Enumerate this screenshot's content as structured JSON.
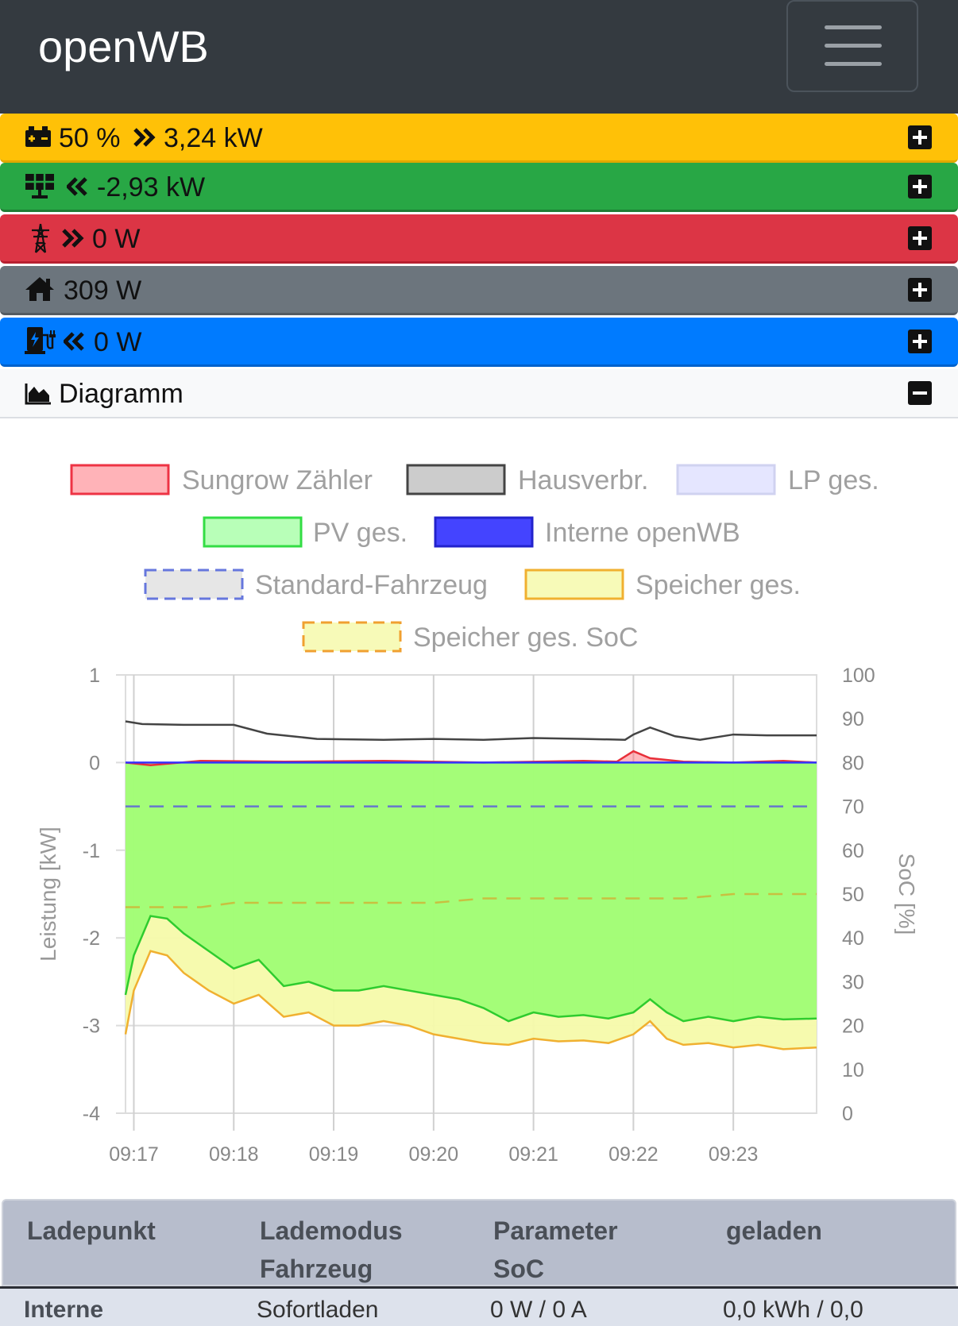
{
  "app": {
    "brand": "openWB"
  },
  "colors": {
    "battery": "#ffc107",
    "pv": "#28a745",
    "grid": "#dc3545",
    "house": "#6c757d",
    "chargepoint": "#007bff",
    "navbar": "#343a40"
  },
  "status_rows": [
    {
      "id": "battery",
      "icons": [
        "battery-icon",
        "double-chevron-right-icon"
      ],
      "soc": "50 %",
      "power": "3,24 kW"
    },
    {
      "id": "pv",
      "icons": [
        "solar-panel-icon",
        "double-chevron-left-icon"
      ],
      "power": "-2,93 kW"
    },
    {
      "id": "grid",
      "icons": [
        "power-tower-icon",
        "double-chevron-right-icon"
      ],
      "power": "0 W"
    },
    {
      "id": "house",
      "icons": [
        "home-icon"
      ],
      "power": "309 W"
    },
    {
      "id": "chargepoint",
      "icons": [
        "charging-station-icon",
        "double-chevron-left-icon"
      ],
      "power": "0 W"
    }
  ],
  "diagram": {
    "label": "Diagramm",
    "icons": [
      "area-chart-icon",
      "minus-square-icon"
    ]
  },
  "chart_data": {
    "type": "area",
    "legend": [
      "Sungrow Zähler",
      "Hausverbr.",
      "LP ges.",
      "PV ges.",
      "Interne openWB",
      "Standard-Fahrzeug",
      "Speicher ges.",
      "Speicher ges. SoC"
    ],
    "legend_placement": "top",
    "ylabel": "Leistung [kW]",
    "y2label": "SoC [%]",
    "ylim": [
      -4,
      1
    ],
    "y2lim": [
      0,
      100
    ],
    "yticks": [
      "1",
      "0",
      "-1",
      "-2",
      "-3",
      "-4"
    ],
    "y2ticks": [
      "100",
      "90",
      "80",
      "70",
      "60",
      "50",
      "40",
      "30",
      "20",
      "10",
      "0"
    ],
    "x_start_time": "09:16:55",
    "x_end_time": "09:23:50",
    "xticks": [
      {
        "time": "09:17",
        "label": "09:17"
      },
      {
        "time": "09:18",
        "label": "09:18"
      },
      {
        "time": "09:19",
        "label": "09:19"
      },
      {
        "time": "09:20",
        "label": "09:20"
      },
      {
        "time": "09:21",
        "label": "09:21"
      },
      {
        "time": "09:22",
        "label": "09:22"
      },
      {
        "time": "09:23",
        "label": "09:23"
      }
    ],
    "grid": true,
    "series": [
      {
        "name": "Hausverbr.",
        "color": "#444444",
        "fill": "none",
        "times": [
          "09:16:55",
          "09:17:05",
          "09:17:30",
          "09:18:00",
          "09:18:20",
          "09:18:50",
          "09:19:30",
          "09:20:00",
          "09:20:30",
          "09:21:00",
          "09:21:30",
          "09:21:55",
          "09:22:00",
          "09:22:10",
          "09:22:25",
          "09:22:40",
          "09:23:00",
          "09:23:20",
          "09:23:50"
        ],
        "values": [
          0.47,
          0.44,
          0.43,
          0.43,
          0.33,
          0.27,
          0.26,
          0.27,
          0.26,
          0.28,
          0.27,
          0.26,
          0.32,
          0.4,
          0.3,
          0.26,
          0.32,
          0.31,
          0.31
        ]
      },
      {
        "name": "Sungrow Zähler",
        "color": "#e8303a",
        "fill": "rgba(255,100,110,0.45)",
        "times": [
          "09:16:55",
          "09:17:10",
          "09:17:40",
          "09:18:30",
          "09:19:30",
          "09:20:30",
          "09:21:30",
          "09:21:50",
          "09:22:00",
          "09:22:10",
          "09:22:30",
          "09:23:00",
          "09:23:30",
          "09:23:50"
        ],
        "values": [
          0.0,
          -0.03,
          0.02,
          0.01,
          0.02,
          0.0,
          0.02,
          0.01,
          0.13,
          0.05,
          0.01,
          0.0,
          0.02,
          0.0
        ]
      },
      {
        "name": "Interne openWB",
        "color": "#3333ff",
        "fill": "none",
        "times": [
          "09:16:55",
          "09:23:50"
        ],
        "values": [
          0,
          0
        ]
      },
      {
        "name": "Standard-Fahrzeug",
        "color": "#6677cc",
        "fill": "none",
        "dashed": true,
        "axis": "right",
        "times": [
          "09:16:55",
          "09:23:50"
        ],
        "values": [
          70,
          70
        ]
      },
      {
        "name": "Speicher ges. SoC",
        "color": "#c8c040",
        "fill": "none",
        "dashed": true,
        "axis": "right",
        "times": [
          "09:16:55",
          "09:17:40",
          "09:18:00",
          "09:19:00",
          "09:20:00",
          "09:20:30",
          "09:21:30",
          "09:22:30",
          "09:23:00",
          "09:23:50"
        ],
        "values": [
          47,
          47,
          48,
          48,
          48,
          49,
          49,
          49,
          50,
          50
        ]
      },
      {
        "name": "PV ges.",
        "color": "#2ecc2e",
        "fill": "rgba(120,255,90,0.65)",
        "times": [
          "09:16:55",
          "09:17:00",
          "09:17:10",
          "09:17:20",
          "09:17:30",
          "09:17:45",
          "09:18:00",
          "09:18:15",
          "09:18:30",
          "09:18:45",
          "09:19:00",
          "09:19:15",
          "09:19:30",
          "09:19:45",
          "09:20:00",
          "09:20:15",
          "09:20:30",
          "09:20:45",
          "09:21:00",
          "09:21:15",
          "09:21:30",
          "09:21:45",
          "09:22:00",
          "09:22:10",
          "09:22:20",
          "09:22:30",
          "09:22:45",
          "09:23:00",
          "09:23:15",
          "09:23:30",
          "09:23:50"
        ],
        "values": [
          -2.65,
          -2.2,
          -1.75,
          -1.78,
          -1.95,
          -2.15,
          -2.35,
          -2.25,
          -2.55,
          -2.5,
          -2.6,
          -2.6,
          -2.55,
          -2.6,
          -2.65,
          -2.7,
          -2.8,
          -2.95,
          -2.85,
          -2.9,
          -2.88,
          -2.92,
          -2.85,
          -2.7,
          -2.85,
          -2.95,
          -2.9,
          -2.95,
          -2.9,
          -2.93,
          -2.92
        ]
      },
      {
        "name": "Speicher ges.",
        "color": "#f0b030",
        "fill": "rgba(245,250,170,0.95)",
        "times": [
          "09:16:55",
          "09:17:00",
          "09:17:10",
          "09:17:20",
          "09:17:30",
          "09:17:45",
          "09:18:00",
          "09:18:15",
          "09:18:30",
          "09:18:45",
          "09:19:00",
          "09:19:15",
          "09:19:30",
          "09:19:45",
          "09:20:00",
          "09:20:15",
          "09:20:30",
          "09:20:45",
          "09:21:00",
          "09:21:15",
          "09:21:30",
          "09:21:45",
          "09:22:00",
          "09:22:10",
          "09:22:20",
          "09:22:30",
          "09:22:45",
          "09:23:00",
          "09:23:15",
          "09:23:30",
          "09:23:50"
        ],
        "values": [
          -3.1,
          -2.6,
          -2.15,
          -2.2,
          -2.4,
          -2.6,
          -2.75,
          -2.65,
          -2.9,
          -2.85,
          -3.0,
          -3.0,
          -2.95,
          -3.0,
          -3.1,
          -3.15,
          -3.2,
          -3.22,
          -3.15,
          -3.18,
          -3.17,
          -3.2,
          -3.1,
          -2.95,
          -3.15,
          -3.22,
          -3.2,
          -3.25,
          -3.22,
          -3.27,
          -3.25
        ]
      }
    ]
  },
  "table": {
    "headers": [
      {
        "line1": "Ladepunkt",
        "line2": ""
      },
      {
        "line1": "Lademodus",
        "line2": "Fahrzeug"
      },
      {
        "line1": "Parameter",
        "line2": "SoC"
      },
      {
        "line1": "geladen",
        "line2": ""
      }
    ],
    "rows": [
      {
        "ladepunkt": "Interne",
        "lademodus": "Sofortladen",
        "parameter": "0 W / 0 A",
        "geladen": "0,0 kWh / 0,0"
      }
    ]
  }
}
